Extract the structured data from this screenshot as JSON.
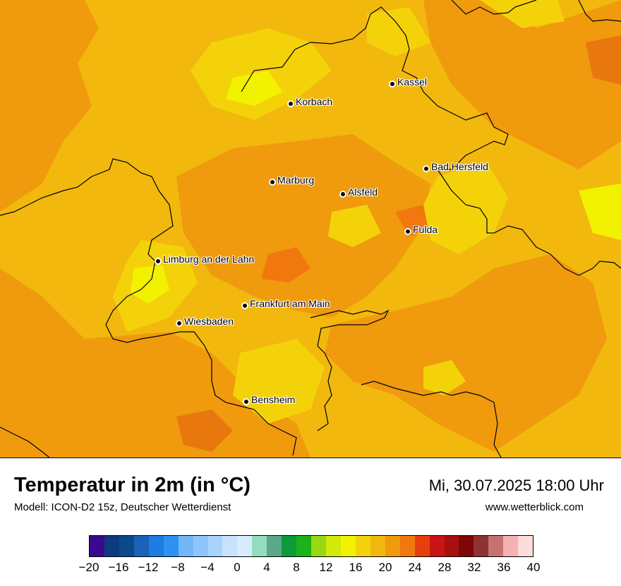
{
  "map": {
    "cities": [
      {
        "name": "Kassel"
      },
      {
        "name": "Korbach"
      },
      {
        "name": "Bad Hersfeld"
      },
      {
        "name": "Marburg"
      },
      {
        "name": "Alsfeld"
      },
      {
        "name": "Fulda"
      },
      {
        "name": "Limburg an der Lahn"
      },
      {
        "name": "Frankfurt am Main"
      },
      {
        "name": "Wiesbaden"
      },
      {
        "name": "Bensheim"
      }
    ]
  },
  "footer": {
    "title": "Temperatur in 2m (in °C)",
    "subtitle": "Modell: ICON-D2 15z, Deutscher Wetterdienst",
    "datetime": "Mi, 30.07.2025 18:00 Uhr",
    "site": "www.wetterblick.com"
  },
  "legend": {
    "colors": [
      "#3a0a8c",
      "#0c3c7e",
      "#0a4a8a",
      "#1a62b8",
      "#1f7ce0",
      "#2e92f2",
      "#72b6fa",
      "#8ec6fb",
      "#a8d4fc",
      "#c6e2fd",
      "#d8ecfd",
      "#94dcc0",
      "#5aa888",
      "#0e9a3a",
      "#1ab41a",
      "#9ad814",
      "#d2ea0a",
      "#f2f200",
      "#f4d20a",
      "#f2b80e",
      "#f09a0e",
      "#f0780e",
      "#e83e0e",
      "#c81414",
      "#a81010",
      "#7e0606",
      "#8e3232",
      "#c67272",
      "#f4b2b2",
      "#fedcdc"
    ],
    "tick_labels": [
      "−20",
      "−16",
      "−12",
      "−8",
      "−4",
      "0",
      "4",
      "8",
      "12",
      "16",
      "20",
      "24",
      "28",
      "32",
      "36",
      "40"
    ],
    "range": [
      -20,
      40
    ]
  }
}
